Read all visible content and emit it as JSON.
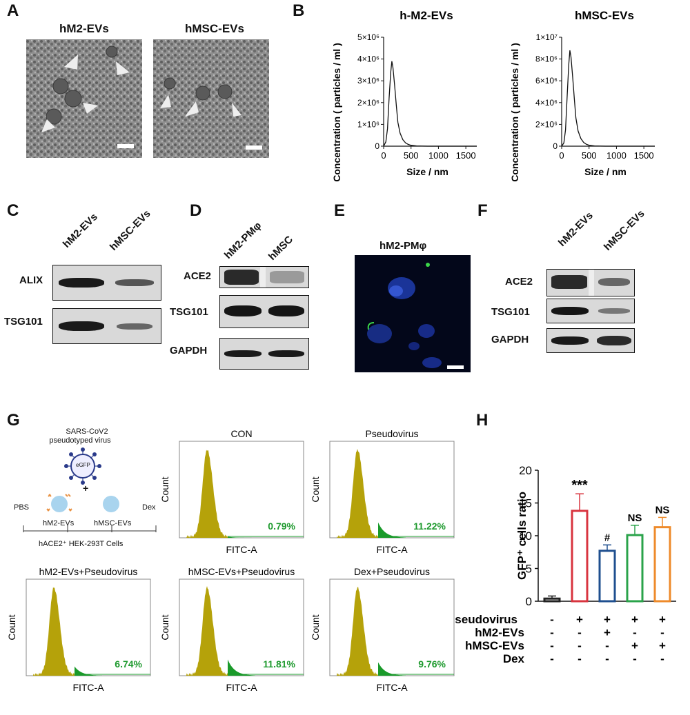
{
  "panels": {
    "A": "A",
    "B": "B",
    "C": "C",
    "D": "D",
    "E": "E",
    "F": "F",
    "G": "G",
    "H": "H"
  },
  "panel_a": {
    "left_title": "hM2-EVs",
    "right_title": "hMSC-EVs"
  },
  "panel_b": {
    "chart_data": [
      {
        "type": "line",
        "title": "h-M2-EVs",
        "xlabel": "Size / nm",
        "ylabel": "Concentration ( particles / ml )",
        "xlim": [
          0,
          1700
        ],
        "xticks": [
          "0",
          "500",
          "1000",
          "1500"
        ],
        "yticks": [
          "0",
          "1×10⁶",
          "2×10⁶",
          "3×10⁶",
          "4×10⁶",
          "5×10⁶"
        ],
        "ylim": [
          0,
          5000000
        ],
        "x": [
          0,
          40,
          70,
          100,
          130,
          150,
          170,
          200,
          230,
          260,
          300,
          350,
          400,
          450,
          500,
          600,
          800,
          1000,
          1700
        ],
        "y": [
          0,
          200000,
          800000,
          2200000,
          3400000,
          3900000,
          3600000,
          2800000,
          1900000,
          1100000,
          600000,
          300000,
          150000,
          80000,
          40000,
          10000,
          0,
          0,
          0
        ]
      },
      {
        "type": "line",
        "title": "hMSC-EVs",
        "xlabel": "Size / nm",
        "ylabel": "Concentration ( particles / ml )",
        "xlim": [
          0,
          1700
        ],
        "xticks": [
          "0",
          "500",
          "1000",
          "1500"
        ],
        "yticks": [
          "0",
          "2×10⁶",
          "4×10⁶",
          "6×10⁶",
          "8×10⁶",
          "1×10⁷"
        ],
        "ylim": [
          0,
          10000000
        ],
        "x": [
          0,
          40,
          70,
          100,
          130,
          150,
          170,
          200,
          230,
          260,
          300,
          350,
          400,
          450,
          500,
          600,
          800,
          1000,
          1700
        ],
        "y": [
          0,
          300000,
          1500000,
          4500000,
          7500000,
          8800000,
          8200000,
          6400000,
          4400000,
          2600000,
          1400000,
          700000,
          350000,
          180000,
          90000,
          20000,
          0,
          0,
          0
        ]
      }
    ]
  },
  "panel_c": {
    "headers": [
      "hM2-EVs",
      "hMSC-EVs"
    ],
    "rows": [
      "ALIX",
      "TSG101"
    ]
  },
  "panel_d": {
    "headers": [
      "hM2-PMφ",
      "hMSC"
    ],
    "rows": [
      "ACE2",
      "TSG101",
      "GAPDH"
    ]
  },
  "panel_e": {
    "title": "hM2-PMφ"
  },
  "panel_f": {
    "headers": [
      "hM2-EVs",
      "hMSC-EVs"
    ],
    "rows": [
      "ACE2",
      "TSG101",
      "GAPDH"
    ]
  },
  "panel_g": {
    "schema": {
      "virus_line1": "SARS-CoV2",
      "virus_line2": "pseudotyped virus",
      "gfp": "eGFP",
      "plus": "+",
      "pbs": "PBS",
      "m2": "hM2-EVs",
      "msc": "hMSC-EVs",
      "dex": "Dex",
      "cells": "hACE2⁺ HEK-293T Cells"
    },
    "colors": {
      "histogram": "#b5a20a",
      "positive": "#1a9a2a",
      "percent_text": "#1f9a2f"
    },
    "histograms": [
      {
        "title": "CON",
        "percent": "0.79%",
        "xlabel": "FITC-A",
        "ylabel": "Count"
      },
      {
        "title": "Pseudovirus",
        "percent": "11.22%",
        "xlabel": "FITC-A",
        "ylabel": "Count"
      },
      {
        "title": "hM2-EVs+Pseudovirus",
        "percent": "6.74%",
        "xlabel": "FITC-A",
        "ylabel": "Count"
      },
      {
        "title": "hMSC-EVs+Pseudovirus",
        "percent": "11.81%",
        "xlabel": "FITC-A",
        "ylabel": "Count"
      },
      {
        "title": "Dex+Pseudovirus",
        "percent": "9.76%",
        "xlabel": "FITC-A",
        "ylabel": "Count"
      }
    ]
  },
  "panel_h": {
    "chart_data": {
      "type": "bar",
      "ylabel": "GFP⁺ cells ratio",
      "ylim": [
        0,
        20
      ],
      "yticks": [
        "0",
        "5",
        "10",
        "15",
        "20"
      ],
      "values": [
        0.4,
        13.8,
        7.7,
        10.1,
        11.3
      ],
      "errors": [
        0.4,
        2.6,
        0.9,
        1.5,
        1.5
      ],
      "colors": [
        "#222222",
        "#d8343f",
        "#1f4f8f",
        "#2aa34a",
        "#ee8a2a"
      ],
      "annotations": [
        "",
        "***",
        "#",
        "NS",
        "NS"
      ],
      "conditions": [
        {
          "label": "Pseudovirus",
          "marks": [
            "-",
            "+",
            "+",
            "+",
            "+"
          ]
        },
        {
          "label": "hM2-EVs",
          "marks": [
            "-",
            "-",
            "+",
            "-",
            "-"
          ]
        },
        {
          "label": "hMSC-EVs",
          "marks": [
            "-",
            "-",
            "-",
            "+",
            "+"
          ]
        },
        {
          "label": "Dex",
          "marks": [
            "-",
            "-",
            "-",
            "-",
            "-"
          ]
        }
      ]
    }
  }
}
